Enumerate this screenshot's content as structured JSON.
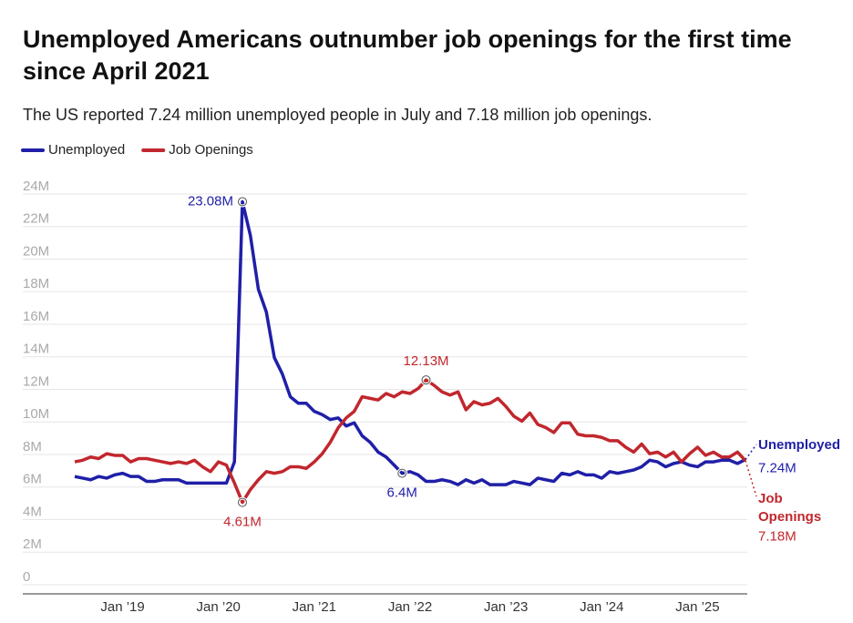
{
  "chart_data": {
    "type": "line",
    "title": "Unemployed Americans outnumber job openings for the first time since April 2021",
    "subtitle": "The US reported 7.24 million unemployed people in July and 7.18 million job openings.",
    "x": [
      "Jul ’18",
      "Aug ’18",
      "Sep ’18",
      "Oct ’18",
      "Nov ’18",
      "Dec ’18",
      "Jan ’19",
      "Feb ’19",
      "Mar ’19",
      "Apr ’19",
      "May ’19",
      "Jun ’19",
      "Jul ’19",
      "Aug ’19",
      "Sep ’19",
      "Oct ’19",
      "Nov ’19",
      "Dec ’19",
      "Jan ’20",
      "Feb ’20",
      "Mar ’20",
      "Apr ’20",
      "May ’20",
      "Jun ’20",
      "Jul ’20",
      "Aug ’20",
      "Sep ’20",
      "Oct ’20",
      "Nov ’20",
      "Dec ’20",
      "Jan ’21",
      "Feb ’21",
      "Mar ’21",
      "Apr ’21",
      "May ’21",
      "Jun ’21",
      "Jul ’21",
      "Aug ’21",
      "Sep ’21",
      "Oct ’21",
      "Nov ’21",
      "Dec ’21",
      "Jan ’22",
      "Feb ’22",
      "Mar ’22",
      "Apr ’22",
      "May ’22",
      "Jun ’22",
      "Jul ’22",
      "Aug ’22",
      "Sep ’22",
      "Oct ’22",
      "Nov ’22",
      "Dec ’22",
      "Jan ’23",
      "Feb ’23",
      "Mar ’23",
      "Apr ’23",
      "May ’23",
      "Jun ’23",
      "Jul ’23",
      "Aug ’23",
      "Sep ’23",
      "Oct ’23",
      "Nov ’23",
      "Dec ’23",
      "Jan ’24",
      "Feb ’24",
      "Mar ’24",
      "Apr ’24",
      "May ’24",
      "Jun ’24",
      "Jul ’24",
      "Aug ’24",
      "Sep ’24",
      "Oct ’24",
      "Nov ’24",
      "Dec ’24",
      "Jan ’25",
      "Feb ’25",
      "Mar ’25",
      "Apr ’25",
      "May ’25",
      "Jun ’25",
      "Jul ’25"
    ],
    "xticks": [
      "Jan ’19",
      "Jan ’20",
      "Jan ’21",
      "Jan ’22",
      "Jan ’23",
      "Jan ’24",
      "Jan ’25"
    ],
    "series": [
      {
        "name": "Unemployed",
        "color": "#1f1fa8",
        "values": [
          6.2,
          6.1,
          6.0,
          6.2,
          6.1,
          6.3,
          6.4,
          6.2,
          6.2,
          5.9,
          5.9,
          6.0,
          6.0,
          6.0,
          5.8,
          5.8,
          5.8,
          5.8,
          5.8,
          5.8,
          7.1,
          23.08,
          21.0,
          17.7,
          16.3,
          13.5,
          12.5,
          11.1,
          10.7,
          10.7,
          10.2,
          10.0,
          9.7,
          9.8,
          9.3,
          9.5,
          8.7,
          8.3,
          7.7,
          7.4,
          6.9,
          6.4,
          6.5,
          6.3,
          5.9,
          5.9,
          6.0,
          5.9,
          5.7,
          6.0,
          5.8,
          6.0,
          5.7,
          5.7,
          5.7,
          5.9,
          5.8,
          5.7,
          6.1,
          6.0,
          5.9,
          6.4,
          6.3,
          6.5,
          6.3,
          6.3,
          6.1,
          6.5,
          6.4,
          6.5,
          6.6,
          6.8,
          7.2,
          7.1,
          6.8,
          7.0,
          7.1,
          6.9,
          6.8,
          7.1,
          7.1,
          7.2,
          7.2,
          7.0,
          7.24
        ]
      },
      {
        "name": "Job Openings",
        "color": "#c1272d",
        "values": [
          7.1,
          7.2,
          7.4,
          7.3,
          7.6,
          7.5,
          7.5,
          7.1,
          7.3,
          7.3,
          7.2,
          7.1,
          7.0,
          7.1,
          7.0,
          7.2,
          6.8,
          6.5,
          7.1,
          6.9,
          5.8,
          4.61,
          5.4,
          6.0,
          6.5,
          6.4,
          6.5,
          6.8,
          6.8,
          6.7,
          7.1,
          7.6,
          8.3,
          9.2,
          9.8,
          10.2,
          11.1,
          11.0,
          10.9,
          11.3,
          11.1,
          11.4,
          11.3,
          11.6,
          12.13,
          11.8,
          11.4,
          11.2,
          11.4,
          10.3,
          10.8,
          10.6,
          10.7,
          11.0,
          10.5,
          9.9,
          9.6,
          10.1,
          9.4,
          9.2,
          8.9,
          9.5,
          9.5,
          8.8,
          8.7,
          8.7,
          8.6,
          8.4,
          8.4,
          8.0,
          7.7,
          8.2,
          7.6,
          7.7,
          7.4,
          7.7,
          7.1,
          7.6,
          8.0,
          7.5,
          7.7,
          7.4,
          7.4,
          7.7,
          7.18
        ]
      }
    ],
    "ylim": [
      0,
      24
    ],
    "yticks": [
      0,
      {
        "value": 2,
        "label": "2M"
      },
      {
        "value": 4,
        "label": "4M"
      },
      {
        "value": 6,
        "label": "6M"
      },
      {
        "value": 8,
        "label": "8M"
      },
      {
        "value": 10,
        "label": "10M"
      },
      {
        "value": 12,
        "label": "12M"
      },
      {
        "value": 14,
        "label": "14M"
      },
      {
        "value": 16,
        "label": "16M"
      },
      {
        "value": 18,
        "label": "18M"
      },
      {
        "value": 20,
        "label": "20M"
      },
      {
        "value": 22,
        "label": "22M"
      },
      {
        "value": 24,
        "label": "24M"
      }
    ],
    "grid": true,
    "annotations": [
      {
        "label": "23.08M",
        "x": "Apr ’20",
        "value": 23.08
      },
      {
        "label": "4.61M",
        "x": "Apr ’20",
        "value": 4.61
      },
      {
        "label": "12.13M",
        "x": "Mar ’22",
        "value": 12.13
      },
      {
        "label": "6.4M",
        "x": "Dec ’21",
        "value": 6.4
      },
      {
        "label": "7.24M",
        "x": "Jul ’25",
        "value": 7.24
      },
      {
        "label": "7.18M",
        "x": "Jul ’25",
        "value": 7.18
      }
    ]
  }
}
